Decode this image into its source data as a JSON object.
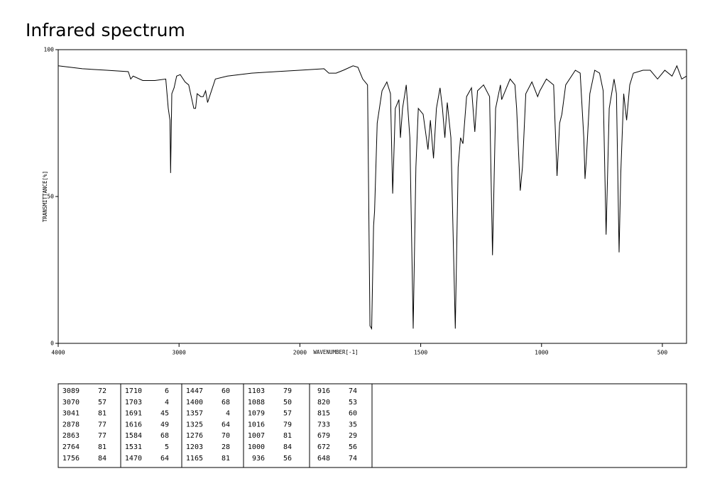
{
  "chart_data": {
    "type": "line",
    "title": "Infrared spectrum",
    "x_label": "WAVENUMBER[-1]",
    "y_label": "TRANSMITTANCE[%]",
    "xlim": [
      4000,
      400
    ],
    "xticks": [
      4000,
      3000,
      2000,
      1500,
      1000,
      500
    ],
    "ylim": [
      0,
      100
    ],
    "yticks": [
      0,
      50,
      100
    ],
    "color": "#000000",
    "x": [
      4000,
      3800,
      3600,
      3420,
      3400,
      3380,
      3300,
      3200,
      3110,
      3089,
      3075,
      3070,
      3060,
      3041,
      3020,
      2990,
      2950,
      2920,
      2878,
      2863,
      2850,
      2820,
      2800,
      2780,
      2764,
      2700,
      2600,
      2400,
      2200,
      2000,
      1900,
      1880,
      1850,
      1820,
      1780,
      1760,
      1740,
      1720,
      1710,
      1703,
      1695,
      1691,
      1680,
      1660,
      1640,
      1625,
      1616,
      1605,
      1590,
      1584,
      1575,
      1560,
      1545,
      1531,
      1520,
      1510,
      1490,
      1470,
      1460,
      1447,
      1435,
      1420,
      1410,
      1400,
      1390,
      1375,
      1357,
      1345,
      1335,
      1325,
      1310,
      1290,
      1276,
      1265,
      1240,
      1215,
      1203,
      1190,
      1170,
      1165,
      1130,
      1110,
      1103,
      1088,
      1079,
      1065,
      1040,
      1016,
      1007,
      1000,
      980,
      950,
      936,
      925,
      916,
      900,
      860,
      840,
      825,
      820,
      815,
      800,
      780,
      760,
      745,
      733,
      720,
      700,
      690,
      679,
      672,
      660,
      648,
      635,
      620,
      580,
      550,
      520,
      490,
      460,
      440,
      420,
      400
    ],
    "values": [
      94.5,
      93.5,
      93,
      92.5,
      90,
      91,
      89.5,
      89.5,
      90,
      80,
      76,
      58,
      85,
      87,
      91,
      91.5,
      89,
      88,
      80,
      80,
      85,
      84,
      84,
      86,
      82,
      90,
      91,
      92,
      92.5,
      93,
      93.5,
      92,
      92,
      93,
      94.5,
      94,
      90,
      88,
      6,
      5,
      40,
      45,
      75,
      86,
      89,
      85,
      51,
      80,
      83,
      70,
      80,
      88,
      70,
      5,
      60,
      80,
      78,
      66,
      76,
      63,
      80,
      87,
      80,
      70,
      82,
      70,
      5,
      60,
      70,
      68,
      84,
      87,
      72,
      86,
      88,
      84,
      30,
      80,
      88,
      83,
      90,
      88,
      80,
      52,
      60,
      85,
      89,
      84,
      86,
      87,
      90,
      88,
      57,
      75,
      78,
      88,
      93,
      92,
      70,
      56,
      62,
      85,
      93,
      92,
      86,
      37,
      80,
      90,
      85,
      31,
      58,
      85,
      76,
      88,
      92,
      93,
      93,
      90,
      93,
      91,
      94.5,
      90,
      91
    ]
  },
  "peak_table": {
    "columns": [
      [
        [
          "3089",
          "72"
        ],
        [
          "3070",
          "57"
        ],
        [
          "3041",
          "81"
        ],
        [
          "2878",
          "77"
        ],
        [
          "2863",
          "77"
        ],
        [
          "2764",
          "81"
        ],
        [
          "1756",
          "84"
        ]
      ],
      [
        [
          "1710",
          "6"
        ],
        [
          "1703",
          "4"
        ],
        [
          "1691",
          "45"
        ],
        [
          "1616",
          "49"
        ],
        [
          "1584",
          "68"
        ],
        [
          "1531",
          "5"
        ],
        [
          "1470",
          "64"
        ]
      ],
      [
        [
          "1447",
          "60"
        ],
        [
          "1400",
          "68"
        ],
        [
          "1357",
          "4"
        ],
        [
          "1325",
          "64"
        ],
        [
          "1276",
          "70"
        ],
        [
          "1203",
          "28"
        ],
        [
          "1165",
          "81"
        ]
      ],
      [
        [
          "1103",
          "79"
        ],
        [
          "1088",
          "50"
        ],
        [
          "1079",
          "57"
        ],
        [
          "1016",
          "79"
        ],
        [
          "1007",
          "81"
        ],
        [
          "1000",
          "84"
        ],
        [
          "936",
          "56"
        ]
      ],
      [
        [
          "916",
          "74"
        ],
        [
          "820",
          "53"
        ],
        [
          "815",
          "60"
        ],
        [
          "733",
          "35"
        ],
        [
          "679",
          "29"
        ],
        [
          "672",
          "56"
        ],
        [
          "648",
          "74"
        ]
      ]
    ]
  }
}
